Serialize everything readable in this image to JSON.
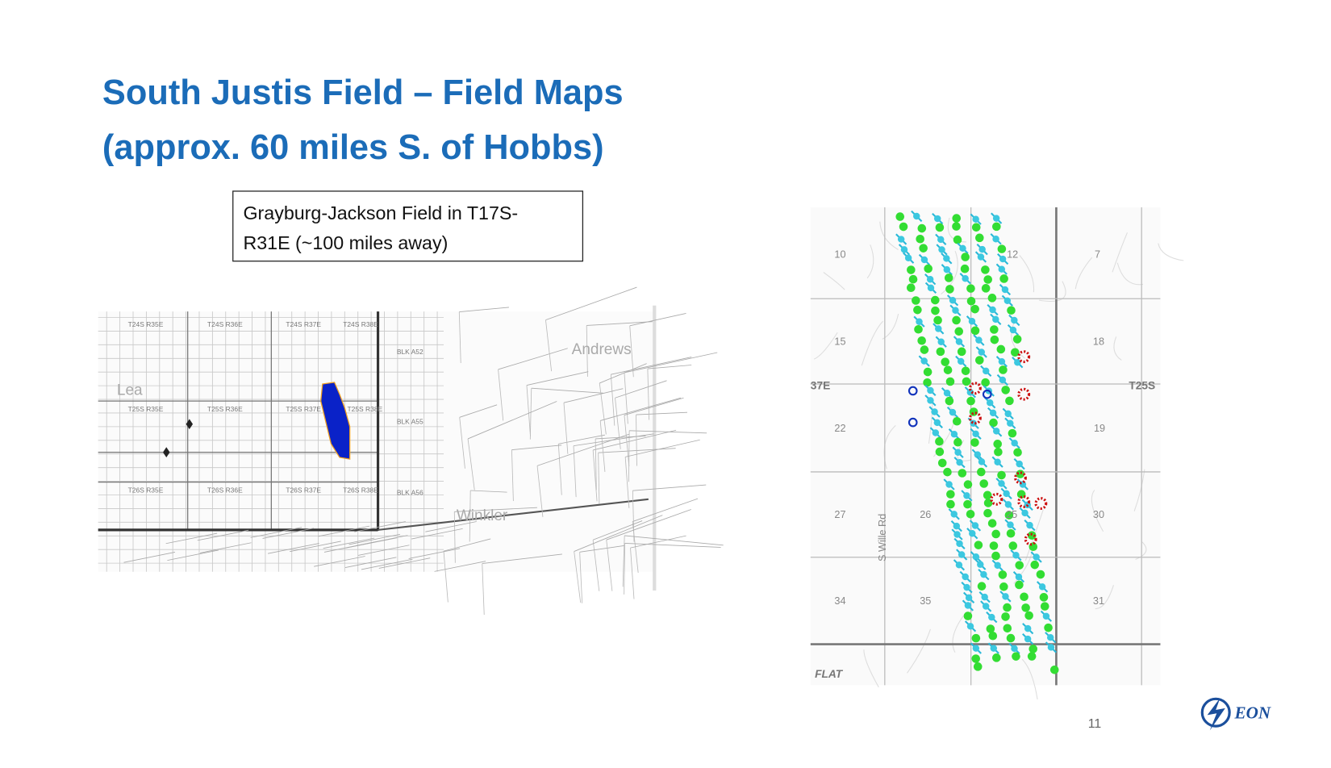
{
  "header": {
    "title_lines": [
      "South Justis Field – Field Maps",
      "(approx. 60 miles S. of Hobbs)"
    ]
  },
  "callout": {
    "lines": [
      "Grayburg-Jackson Field in T17S-",
      "R31E (~100 miles away)"
    ]
  },
  "left_map": {
    "labels": [
      "T24S R35E",
      "T24S R36E",
      "T24S R37E",
      "T24S R38E",
      "Lea",
      "T25S R35E",
      "T25S R36E",
      "T25S R37E",
      "T25S R38E",
      "T26S R35E",
      "T26S R36E",
      "T26S R37E",
      "T26S R38E",
      "Andrews",
      "Winkler",
      "BLK A52",
      "BLK A55",
      "BLK A56"
    ]
  },
  "right_map": {
    "labels": [
      "10",
      "12",
      "7",
      "15",
      "18",
      "37E",
      "T25S",
      "22",
      "19",
      "27",
      "26",
      "25",
      "30",
      "34",
      "35",
      "31",
      "FLAT",
      "S Wille Rd"
    ]
  },
  "footer": {
    "page_number": "11",
    "logo": "EON"
  }
}
